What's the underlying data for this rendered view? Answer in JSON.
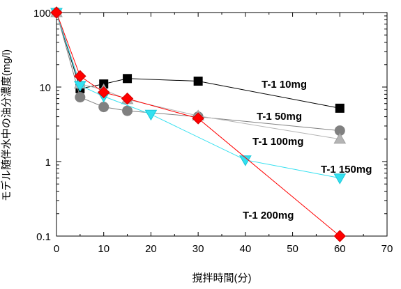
{
  "chart_data": {
    "type": "line",
    "title": "",
    "xlabel": "撹拌時間(分)",
    "ylabel": "モデル随伴水中の油分濃度(mg/l)",
    "xlim": [
      0,
      70
    ],
    "ylim": [
      0.1,
      100
    ],
    "yscale": "log",
    "xticks": [
      0,
      10,
      20,
      30,
      40,
      50,
      60,
      70
    ],
    "yticks": [
      0.1,
      1,
      10,
      100
    ],
    "xtick_labels": [
      "0",
      "10",
      "20",
      "30",
      "40",
      "50",
      "60",
      "70"
    ],
    "ytick_labels": [
      "0.1",
      "1",
      "10",
      "100"
    ],
    "grid": false,
    "series": [
      {
        "name": "T-1  10mg",
        "color": "#000000",
        "marker": "square",
        "x": [
          0,
          5,
          10,
          15,
          30,
          60
        ],
        "y": [
          100,
          9.5,
          11,
          13,
          12,
          5.2
        ]
      },
      {
        "name": "T-1  50mg",
        "color": "#808080",
        "marker": "circle",
        "x": [
          0,
          5,
          10,
          15,
          30,
          60
        ],
        "y": [
          100,
          7.3,
          5.4,
          4.8,
          4.0,
          2.6
        ]
      },
      {
        "name": "T-1  100mg",
        "color": "#b4b4b4",
        "marker": "triangle-up",
        "x": [
          0,
          5,
          10,
          15,
          30,
          60
        ],
        "y": [
          100,
          11,
          9.2,
          6.8,
          4.1,
          2.0
        ]
      },
      {
        "name": "T-1  150mg",
        "color": "#33e0f0",
        "marker": "triangle-down",
        "x": [
          0,
          5,
          10,
          20,
          40,
          60
        ],
        "y": [
          100,
          10.5,
          7.5,
          4.3,
          1.05,
          0.6
        ]
      },
      {
        "name": "T-1  200mg",
        "color": "#ff0000",
        "marker": "diamond",
        "x": [
          0,
          5,
          10,
          15,
          30,
          60
        ],
        "y": [
          100,
          14,
          8.5,
          7.0,
          3.8,
          0.1
        ]
      }
    ]
  }
}
